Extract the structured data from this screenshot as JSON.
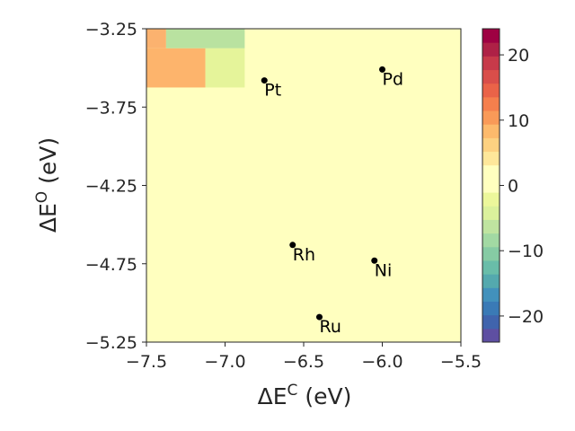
{
  "chart_data": {
    "type": "heatmap",
    "title": "",
    "xlabel": {
      "base": "ΔE",
      "sup": "C",
      "unit": " (eV)"
    },
    "ylabel": {
      "base": "ΔE",
      "sup": "O",
      "unit": " (eV)"
    },
    "xlim": [
      -7.5,
      -5.5
    ],
    "ylim": [
      -5.25,
      -3.25
    ],
    "xticks": [
      -7.5,
      -7.0,
      -6.5,
      -6.0,
      -5.5
    ],
    "xtick_labels": [
      "−7.5",
      "−7.0",
      "−6.5",
      "−6.0",
      "−5.5"
    ],
    "yticks": [
      -3.25,
      -3.75,
      -4.25,
      -4.75,
      -5.25
    ],
    "ytick_labels": [
      "−3.25",
      "−3.75",
      "−4.25",
      "−4.75",
      "−5.25"
    ],
    "grid": false,
    "background_value": 0,
    "cells": [
      {
        "x0": -7.5,
        "x1": -7.375,
        "y0": -3.375,
        "y1": -3.25,
        "value": 4.5,
        "color": "#fbb26f"
      },
      {
        "x0": -7.375,
        "x1": -6.875,
        "y0": -3.375,
        "y1": -3.25,
        "value": -7.5,
        "color": "#b9e2a0"
      },
      {
        "x0": -7.5,
        "x1": -7.125,
        "y0": -3.625,
        "y1": -3.375,
        "value": 6.5,
        "color": "#fdb46c"
      },
      {
        "x0": -7.125,
        "x1": -6.875,
        "y0": -3.625,
        "y1": -3.375,
        "value": -2.5,
        "color": "#e5f49a"
      }
    ],
    "points": [
      {
        "name": "Pt",
        "x": -6.75,
        "y": -3.58
      },
      {
        "name": "Pd",
        "x": -6.0,
        "y": -3.51
      },
      {
        "name": "Rh",
        "x": -6.57,
        "y": -4.63
      },
      {
        "name": "Ni",
        "x": -6.05,
        "y": -4.73
      },
      {
        "name": "Ru",
        "x": -6.4,
        "y": -5.09
      }
    ],
    "colorbar": {
      "vmin": -24,
      "vmax": 24,
      "ticks": [
        -20,
        -10,
        0,
        10,
        20
      ],
      "tick_labels": [
        "−20",
        "−10",
        "0",
        "10",
        "20"
      ],
      "colors": [
        "#5e4fa2",
        "#4064ad",
        "#3a7ab6",
        "#4291bc",
        "#54a9ae",
        "#69bda9",
        "#86cba4",
        "#a2d9a3",
        "#bfe4a0",
        "#dbf19c",
        "#ecf79b",
        "#ffffbf",
        "#ffffbf",
        "#fee79a",
        "#fdd181",
        "#fdba6c",
        "#f99a58",
        "#f57f4d",
        "#ea6348",
        "#d94e4a",
        "#c73a4a",
        "#ae2146",
        "#9e0142"
      ]
    }
  }
}
